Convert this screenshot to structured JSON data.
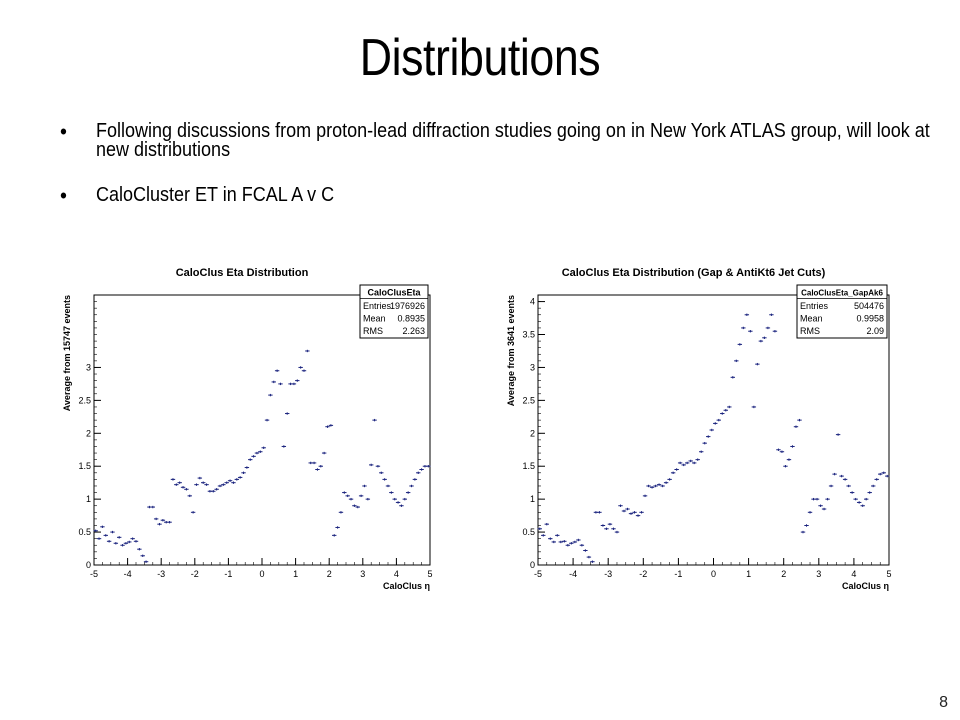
{
  "slide": {
    "title": "Distributions",
    "bullets": [
      "Following discussions from proton-lead diffraction studies going on in New York ATLAS group, will look at new distributions",
      "CaloCluster ET in FCAL A v C"
    ],
    "bullet_glyph": "•",
    "page_number": "8"
  },
  "chart_data": [
    {
      "type": "scatter",
      "title": "CaloClus Eta Distribution",
      "xlabel": "CaloClus η",
      "ylabel": "Average from 15747 events",
      "xlim": [
        -5,
        5
      ],
      "ylim": [
        0,
        4.1
      ],
      "xticks": [
        -5,
        -4,
        -3,
        -2,
        -1,
        0,
        1,
        2,
        3,
        4,
        5
      ],
      "yticks": [
        0,
        0.5,
        1,
        1.5,
        2,
        2.5,
        3
      ],
      "marker_color": "#1a237e",
      "stats_box": {
        "name": "CaloClusEta",
        "rows": [
          {
            "label": "Entries",
            "value": "1976926"
          },
          {
            "label": "Mean",
            "value": "0.8935"
          },
          {
            "label": "RMS",
            "value": "2.263"
          }
        ]
      },
      "x": [
        -4.95,
        -4.85,
        -4.75,
        -4.65,
        -4.55,
        -4.45,
        -4.35,
        -4.25,
        -4.15,
        -4.05,
        -3.95,
        -3.85,
        -3.75,
        -3.65,
        -3.55,
        -3.45,
        -3.35,
        -3.25,
        -3.15,
        -3.05,
        -2.95,
        -2.85,
        -2.75,
        -2.65,
        -2.55,
        -2.45,
        -2.35,
        -2.25,
        -2.15,
        -2.05,
        -1.95,
        -1.85,
        -1.75,
        -1.65,
        -1.55,
        -1.45,
        -1.35,
        -1.25,
        -1.15,
        -1.05,
        -0.95,
        -0.85,
        -0.75,
        -0.65,
        -0.55,
        -0.45,
        -0.35,
        -0.25,
        -0.15,
        -0.05,
        0.05,
        0.15,
        0.25,
        0.35,
        0.45,
        0.55,
        0.65,
        0.75,
        0.85,
        0.95,
        1.05,
        1.15,
        1.25,
        1.35,
        1.45,
        1.55,
        1.65,
        1.75,
        1.85,
        1.95,
        2.05,
        2.15,
        2.25,
        2.35,
        2.45,
        2.55,
        2.65,
        2.75,
        2.85,
        2.95,
        3.05,
        3.15,
        3.25,
        3.35,
        3.45,
        3.55,
        3.65,
        3.75,
        3.85,
        3.95,
        4.05,
        4.15,
        4.25,
        4.35,
        4.45,
        4.55,
        4.65,
        4.75,
        4.85,
        4.95
      ],
      "y": [
        0.52,
        0.4,
        0.58,
        0.45,
        0.36,
        0.5,
        0.33,
        0.42,
        0.3,
        0.33,
        0.35,
        0.4,
        0.36,
        0.24,
        0.14,
        0.05,
        0.88,
        0.88,
        0.7,
        0.62,
        0.68,
        0.65,
        0.65,
        1.3,
        1.22,
        1.25,
        1.18,
        1.15,
        1.05,
        0.8,
        1.22,
        1.32,
        1.25,
        1.22,
        1.12,
        1.12,
        1.15,
        1.2,
        1.22,
        1.25,
        1.28,
        1.25,
        1.3,
        1.33,
        1.4,
        1.48,
        1.6,
        1.65,
        1.7,
        1.72,
        1.78,
        2.2,
        2.58,
        2.78,
        2.95,
        2.75,
        1.8,
        2.3,
        2.75,
        2.75,
        2.8,
        3.0,
        2.95,
        3.25,
        1.55,
        1.55,
        1.45,
        1.5,
        1.7,
        2.1,
        2.12,
        0.45,
        0.57,
        0.8,
        1.1,
        1.05,
        1.0,
        0.9,
        0.88,
        1.05,
        1.2,
        1.0,
        1.52,
        2.2,
        1.5,
        1.4,
        1.3,
        1.2,
        1.1,
        1.0,
        0.95,
        0.9,
        1.0,
        1.1,
        1.2,
        1.3,
        1.4,
        1.45,
        1.5,
        1.5
      ]
    },
    {
      "type": "scatter",
      "title": "CaloClus Eta Distribution (Gap & AntiKt6 Jet Cuts)",
      "xlabel": "CaloClus η",
      "ylabel": "Average from 3641 events",
      "xlim": [
        -5,
        5
      ],
      "ylim": [
        0,
        4.1
      ],
      "xticks": [
        -5,
        -4,
        -3,
        -2,
        -1,
        0,
        1,
        2,
        3,
        4,
        5
      ],
      "yticks": [
        0,
        0.5,
        1,
        1.5,
        2,
        2.5,
        3,
        3.5,
        4
      ],
      "marker_color": "#1a237e",
      "stats_box": {
        "name": "CaloClusEta_GapAk6",
        "rows": [
          {
            "label": "Entries",
            "value": "504476"
          },
          {
            "label": "Mean",
            "value": "0.9958"
          },
          {
            "label": "RMS",
            "value": "2.09"
          }
        ]
      },
      "x": [
        -4.95,
        -4.85,
        -4.75,
        -4.65,
        -4.55,
        -4.45,
        -4.35,
        -4.25,
        -4.15,
        -4.05,
        -3.95,
        -3.85,
        -3.75,
        -3.65,
        -3.55,
        -3.45,
        -3.35,
        -3.25,
        -3.15,
        -3.05,
        -2.95,
        -2.85,
        -2.75,
        -2.65,
        -2.55,
        -2.45,
        -2.35,
        -2.25,
        -2.15,
        -2.05,
        -1.95,
        -1.85,
        -1.75,
        -1.65,
        -1.55,
        -1.45,
        -1.35,
        -1.25,
        -1.15,
        -1.05,
        -0.95,
        -0.85,
        -0.75,
        -0.65,
        -0.55,
        -0.45,
        -0.35,
        -0.25,
        -0.15,
        -0.05,
        0.05,
        0.15,
        0.25,
        0.35,
        0.45,
        0.55,
        0.65,
        0.75,
        0.85,
        0.95,
        1.05,
        1.15,
        1.25,
        1.35,
        1.45,
        1.55,
        1.65,
        1.75,
        1.85,
        1.95,
        2.05,
        2.15,
        2.25,
        2.35,
        2.45,
        2.55,
        2.65,
        2.75,
        2.85,
        2.95,
        3.05,
        3.15,
        3.25,
        3.35,
        3.45,
        3.55,
        3.65,
        3.75,
        3.85,
        3.95,
        4.05,
        4.15,
        4.25,
        4.35,
        4.45,
        4.55,
        4.65,
        4.75,
        4.85,
        4.95
      ],
      "y": [
        0.55,
        0.45,
        0.62,
        0.4,
        0.35,
        0.45,
        0.35,
        0.36,
        0.3,
        0.33,
        0.35,
        0.38,
        0.3,
        0.22,
        0.12,
        0.05,
        0.8,
        0.8,
        0.6,
        0.55,
        0.62,
        0.55,
        0.5,
        0.9,
        0.82,
        0.85,
        0.78,
        0.8,
        0.75,
        0.8,
        1.05,
        1.2,
        1.18,
        1.2,
        1.22,
        1.2,
        1.25,
        1.3,
        1.4,
        1.45,
        1.55,
        1.52,
        1.55,
        1.58,
        1.55,
        1.6,
        1.72,
        1.85,
        1.95,
        2.05,
        2.15,
        2.2,
        2.3,
        2.35,
        2.4,
        2.85,
        3.1,
        3.35,
        3.6,
        3.8,
        3.55,
        2.4,
        3.05,
        3.4,
        3.45,
        3.6,
        3.8,
        3.55,
        1.75,
        1.72,
        1.5,
        1.6,
        1.8,
        2.1,
        2.2,
        0.5,
        0.6,
        0.8,
        1.0,
        1.0,
        0.9,
        0.85,
        1.0,
        1.2,
        1.38,
        1.98,
        1.35,
        1.3,
        1.2,
        1.1,
        1.0,
        0.95,
        0.9,
        1.0,
        1.1,
        1.2,
        1.3,
        1.38,
        1.4,
        1.35
      ]
    }
  ]
}
